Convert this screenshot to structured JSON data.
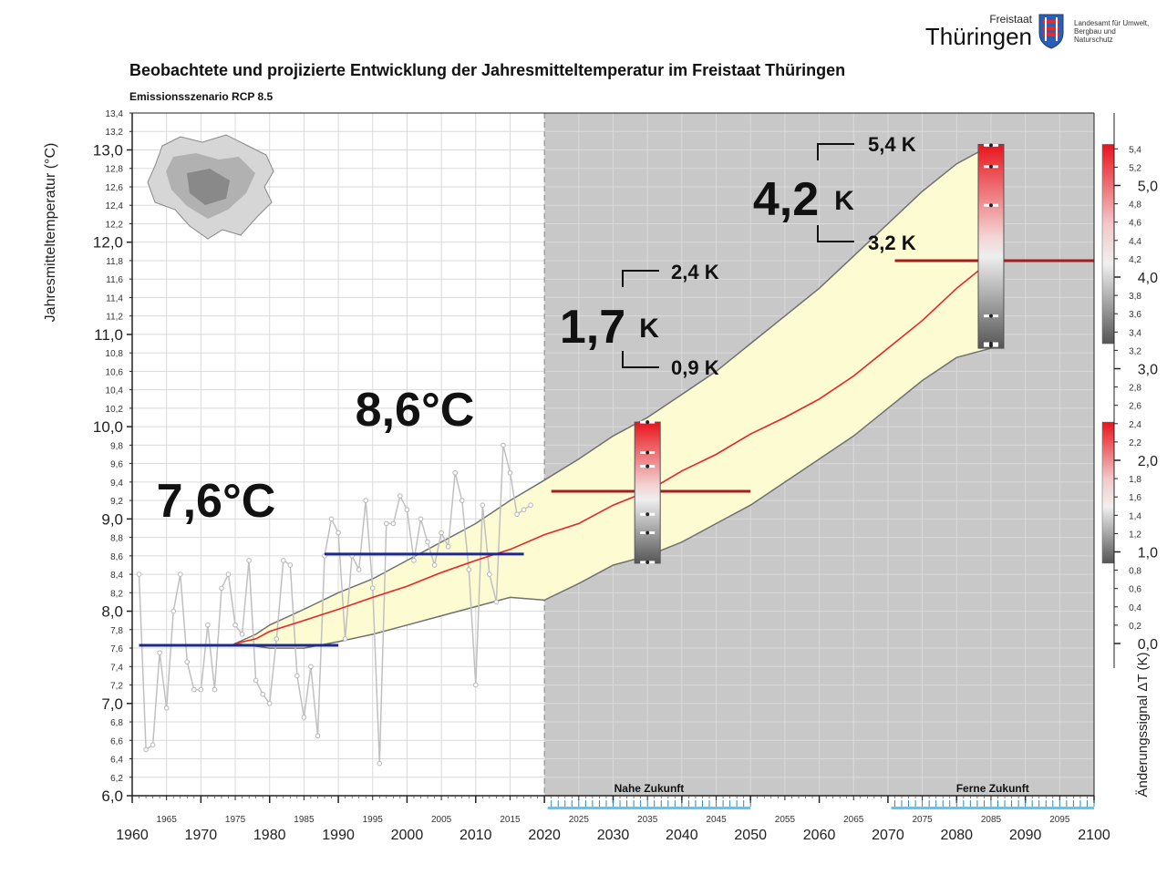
{
  "header": {
    "title": "Beobachtete und projizierte Entwicklung der Jahresmitteltemperatur im Freistaat Thüringen",
    "subtitle": "Emissionsszenario RCP 8.5"
  },
  "logo": {
    "state_small": "Freistaat",
    "state_big": "Thüringen",
    "agency": "Landesamt für Umwelt, Bergbau und Naturschutz"
  },
  "colors": {
    "future_bg": "#c8c8c8",
    "band_fill": "#fdfbd2",
    "band_edge": "#707070",
    "median_line": "#e8232a",
    "observed_line": "#c0c0c0",
    "mean_line": "#1e2a8a",
    "future_mean_line": "#a51d1d"
  },
  "chart_data": {
    "type": "line",
    "title": "Beobachtete und projizierte Entwicklung der Jahresmitteltemperatur im Freistaat Thüringen",
    "subtitle": "Emissionsszenario RCP 8.5",
    "ylabel": "Jahresmitteltemperatur (°C)",
    "ylabel_right": "Änderungssignal ΔT (K)",
    "xlim": [
      1960,
      2100
    ],
    "ylim": [
      6.0,
      13.4
    ],
    "ylim_right": [
      0.0,
      5.5
    ],
    "x_major_ticks": [
      "1960",
      "1970",
      "1980",
      "1990",
      "2000",
      "2010",
      "2020",
      "2030",
      "2040",
      "2050",
      "2060",
      "2070",
      "2080",
      "2090",
      "2100"
    ],
    "x_minor_tick_labels": [
      "1965",
      "1975",
      "1985",
      "1995",
      "2005",
      "2015",
      "2025",
      "2035",
      "2045",
      "2055",
      "2065",
      "2075",
      "2085",
      "2095"
    ],
    "y_major_tick_labels": [
      "6,0",
      "7,0",
      "8,0",
      "9,0",
      "10,0",
      "11,0",
      "12,0",
      "13,0"
    ],
    "y_minor_tick_labels": [
      "6,2",
      "6,4",
      "6,6",
      "6,8",
      "7,2",
      "7,4",
      "7,6",
      "7,8",
      "8,2",
      "8,4",
      "8,6",
      "8,8",
      "9,2",
      "9,4",
      "9,6",
      "9,8",
      "10,2",
      "10,4",
      "10,6",
      "10,8",
      "11,2",
      "11,4",
      "11,6",
      "11,8",
      "12,2",
      "12,4",
      "12,6",
      "12,8",
      "13,2",
      "13,4"
    ],
    "right_major_tick_labels": [
      "0,0",
      "1,0",
      "2,0",
      "3,0",
      "4,0",
      "5,0"
    ],
    "right_minor_tick_labels": [
      "0,2",
      "0,4",
      "0,6",
      "0,8",
      "1,2",
      "1,4",
      "1,6",
      "1,8",
      "2,2",
      "2,4",
      "2,6",
      "2,8",
      "3,2",
      "3,4",
      "3,6",
      "3,8",
      "4,2",
      "4,4",
      "4,6",
      "4,8",
      "5,2",
      "5,4"
    ],
    "future_shading_start": 2020,
    "periods": [
      {
        "label": "Nahe Zukunft",
        "start": 2021,
        "end": 2050
      },
      {
        "label": "Ferne Zukunft",
        "start": 2071,
        "end": 2100
      }
    ],
    "series": [
      {
        "name": "observed",
        "x": [
          1961,
          1962,
          1963,
          1964,
          1965,
          1966,
          1967,
          1968,
          1969,
          1970,
          1971,
          1972,
          1973,
          1974,
          1975,
          1976,
          1977,
          1978,
          1979,
          1980,
          1981,
          1982,
          1983,
          1984,
          1985,
          1986,
          1987,
          1988,
          1989,
          1990,
          1991,
          1992,
          1993,
          1994,
          1995,
          1996,
          1997,
          1998,
          1999,
          2000,
          2001,
          2002,
          2003,
          2004,
          2005,
          2006,
          2007,
          2008,
          2009,
          2010,
          2011,
          2012,
          2013,
          2014,
          2015,
          2016,
          2017,
          2018
        ],
        "y": [
          8.4,
          6.5,
          6.55,
          7.55,
          6.95,
          8.0,
          8.4,
          7.45,
          7.15,
          7.15,
          7.85,
          7.15,
          8.25,
          8.4,
          7.85,
          7.75,
          8.55,
          7.25,
          7.1,
          7.0,
          7.7,
          8.55,
          8.5,
          7.3,
          6.85,
          7.4,
          6.65,
          8.6,
          9.0,
          8.85,
          7.7,
          8.6,
          8.45,
          9.2,
          8.25,
          6.35,
          8.95,
          8.95,
          9.25,
          9.1,
          8.55,
          9.0,
          8.75,
          8.5,
          8.85,
          8.7,
          9.5,
          9.2,
          8.45,
          7.2,
          9.15,
          8.4,
          8.1,
          9.8,
          9.5,
          9.05,
          9.1,
          9.15
        ]
      },
      {
        "name": "projection_median",
        "x": [
          1975,
          1978,
          1980,
          1985,
          1990,
          1995,
          2000,
          2005,
          2010,
          2015,
          2020,
          2025,
          2030,
          2035,
          2040,
          2045,
          2050,
          2055,
          2060,
          2065,
          2070,
          2075,
          2080,
          2085
        ],
        "y": [
          7.65,
          7.7,
          7.78,
          7.9,
          8.02,
          8.15,
          8.27,
          8.42,
          8.55,
          8.67,
          8.83,
          8.95,
          9.15,
          9.3,
          9.52,
          9.7,
          9.92,
          10.1,
          10.3,
          10.55,
          10.85,
          11.15,
          11.5,
          11.8
        ]
      },
      {
        "name": "projection_upper",
        "x": [
          1975,
          1978,
          1980,
          1985,
          1990,
          1995,
          2000,
          2005,
          2010,
          2015,
          2020,
          2025,
          2030,
          2035,
          2040,
          2045,
          2050,
          2055,
          2060,
          2065,
          2070,
          2075,
          2080,
          2085
        ],
        "y": [
          7.65,
          7.75,
          7.85,
          8.02,
          8.2,
          8.35,
          8.55,
          8.75,
          8.95,
          9.2,
          9.42,
          9.65,
          9.9,
          10.1,
          10.35,
          10.6,
          10.9,
          11.2,
          11.5,
          11.85,
          12.2,
          12.55,
          12.85,
          13.05
        ]
      },
      {
        "name": "projection_lower",
        "x": [
          1975,
          1978,
          1980,
          1985,
          1990,
          1995,
          2000,
          2005,
          2010,
          2015,
          2020,
          2025,
          2030,
          2035,
          2040,
          2045,
          2050,
          2055,
          2060,
          2065,
          2070,
          2075,
          2080,
          2085
        ],
        "y": [
          7.65,
          7.62,
          7.6,
          7.6,
          7.67,
          7.75,
          7.85,
          7.95,
          8.05,
          8.15,
          8.12,
          8.3,
          8.5,
          8.6,
          8.75,
          8.95,
          9.15,
          9.4,
          9.65,
          9.9,
          10.2,
          10.5,
          10.75,
          10.85
        ]
      }
    ],
    "reference_means": [
      {
        "label": "7,6°C",
        "value": 7.63,
        "from": 1961,
        "to": 1990
      },
      {
        "label": "8,6°C",
        "value": 8.62,
        "from": 1988,
        "to": 2017
      }
    ],
    "future_means": [
      {
        "value": 9.3,
        "from": 2021,
        "to": 2050
      },
      {
        "value": 11.8,
        "from": 2071,
        "to": 2100
      }
    ],
    "change_signals": [
      {
        "period": "Nahe Zukunft",
        "year": 2035,
        "median": "1,7",
        "unit": "K",
        "upper": "2,4 K",
        "lower": "0,9 K",
        "range_y": [
          8.52,
          10.05
        ],
        "dots_y": [
          10.05,
          9.72,
          9.57,
          9.05,
          8.85,
          8.53
        ]
      },
      {
        "period": "Ferne Zukunft",
        "year": 2085,
        "median": "4,2",
        "unit": "K",
        "upper": "5,4 K",
        "lower": "3,2 K",
        "range_y": [
          10.85,
          13.06
        ],
        "dots_y": [
          13.05,
          12.82,
          12.4,
          11.2,
          10.9,
          10.88
        ]
      }
    ],
    "grid": true
  }
}
